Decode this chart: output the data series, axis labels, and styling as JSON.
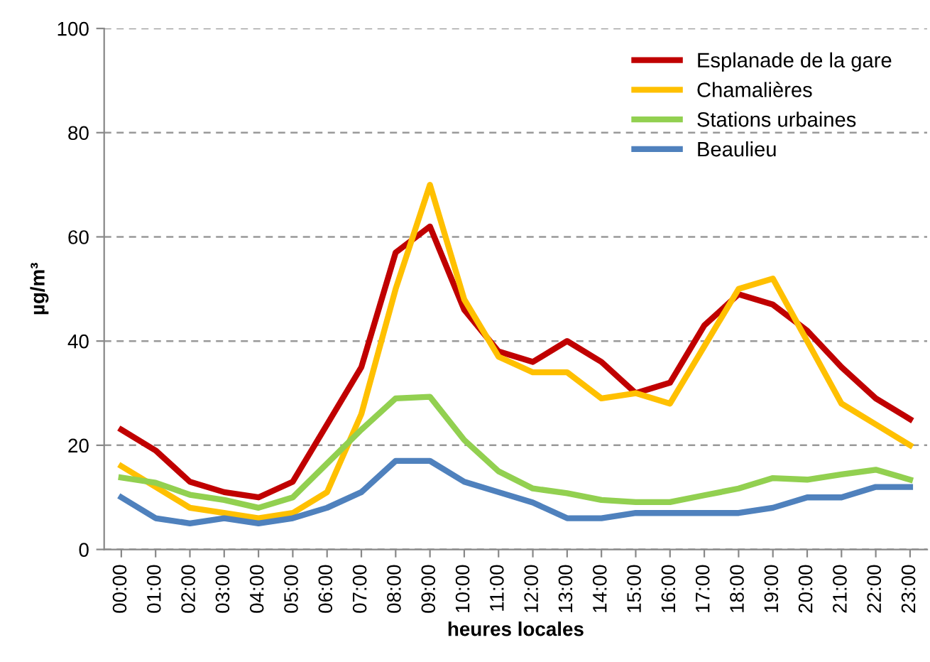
{
  "chart_data": {
    "type": "line",
    "xlabel": "heures locales",
    "ylabel": "µg/m³",
    "categories": [
      "00:00",
      "01:00",
      "02:00",
      "03:00",
      "04:00",
      "05:00",
      "06:00",
      "07:00",
      "08:00",
      "09:00",
      "10:00",
      "11:00",
      "12:00",
      "13:00",
      "14:00",
      "15:00",
      "16:00",
      "17:00",
      "18:00",
      "19:00",
      "20:00",
      "21:00",
      "22:00",
      "23:00"
    ],
    "series": [
      {
        "name": "Esplanade de la gare",
        "color": "#c00000",
        "values": [
          23,
          19,
          13,
          11,
          10,
          13,
          24,
          35,
          57,
          62,
          46,
          38,
          36,
          40,
          36,
          30,
          32,
          43,
          49,
          47,
          42,
          35,
          29,
          25
        ]
      },
      {
        "name": "Chamalières",
        "color": "#ffc000",
        "values": [
          16,
          12,
          8,
          7,
          6,
          7,
          11,
          26,
          50,
          70,
          48,
          37,
          34,
          34,
          29,
          30,
          28,
          39,
          50,
          52,
          40,
          28,
          24,
          20
        ]
      },
      {
        "name": "Stations urbaines",
        "color": "#92d050",
        "values": [
          13.8,
          12.8,
          10.5,
          9.5,
          8,
          10,
          16.5,
          23,
          29,
          29.3,
          21,
          15,
          11.7,
          10.8,
          9.5,
          9.1,
          9.1,
          10.4,
          11.7,
          13.7,
          13.4,
          14.4,
          15.3,
          13.4
        ]
      },
      {
        "name": "Beaulieu",
        "color": "#4f81bd",
        "values": [
          10,
          6,
          5,
          6,
          5,
          6,
          8,
          11,
          17,
          17,
          13,
          11,
          9,
          6,
          6,
          7,
          7,
          7,
          7,
          8,
          10,
          10,
          12,
          12
        ]
      }
    ],
    "ylim": [
      0,
      100
    ],
    "yticks": [
      0,
      20,
      40,
      60,
      80,
      100
    ],
    "grid": "y",
    "legend": "top right",
    "line_style": "solid",
    "marker": "none"
  }
}
